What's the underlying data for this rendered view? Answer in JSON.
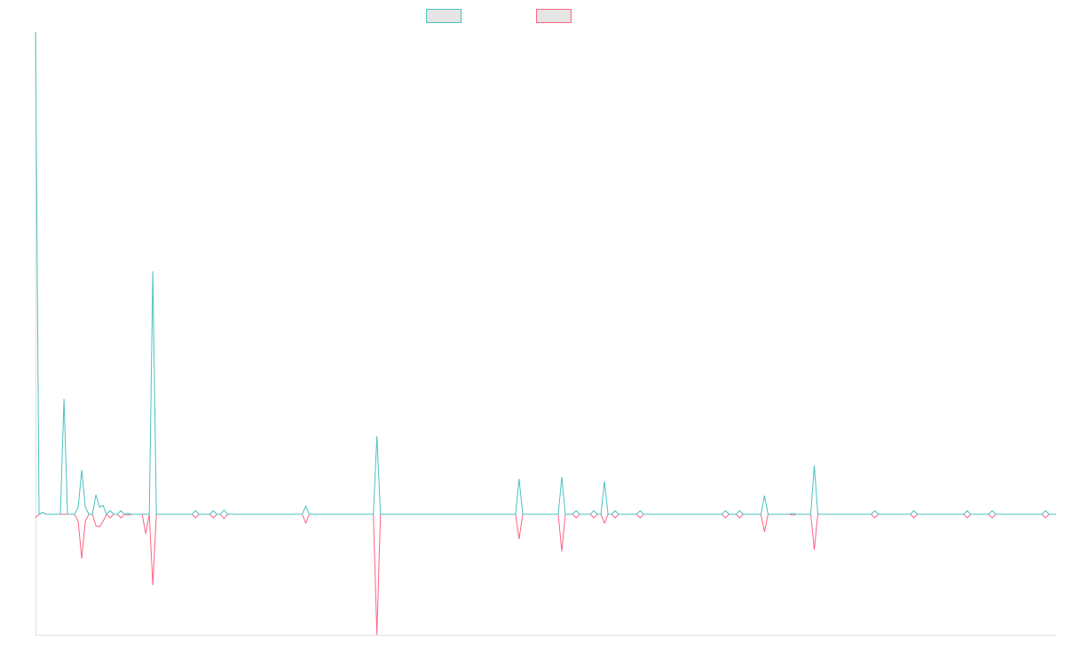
{
  "chart_data": {
    "type": "line",
    "title": "",
    "xlabel": "",
    "ylabel": "",
    "x_count": 288,
    "default_value": 0,
    "ylim": [
      -136,
      544
    ],
    "grid": false,
    "legend_placement": "top-center",
    "series": [
      {
        "name": "",
        "color": "#4bc0c0",
        "points": [
          [
            0,
            544
          ],
          [
            2,
            2
          ],
          [
            8,
            130
          ],
          [
            12,
            8
          ],
          [
            13,
            50
          ],
          [
            14,
            8
          ],
          [
            17,
            22
          ],
          [
            18,
            8
          ],
          [
            19,
            10
          ],
          [
            21,
            4
          ],
          [
            24,
            4
          ],
          [
            26,
            1
          ],
          [
            33,
            274
          ],
          [
            45,
            4
          ],
          [
            50,
            4
          ],
          [
            53,
            5
          ],
          [
            76,
            9
          ],
          [
            96,
            88
          ],
          [
            136,
            40
          ],
          [
            148,
            42
          ],
          [
            152,
            4
          ],
          [
            157,
            4
          ],
          [
            160,
            37
          ],
          [
            163,
            4
          ],
          [
            170,
            4
          ],
          [
            194,
            4
          ],
          [
            198,
            4
          ],
          [
            205,
            21
          ],
          [
            213,
            1
          ],
          [
            219,
            55
          ],
          [
            236,
            4
          ],
          [
            247,
            4
          ],
          [
            262,
            4
          ],
          [
            269,
            4
          ],
          [
            284,
            4
          ]
        ]
      },
      {
        "name": "",
        "color": "#ff6384",
        "points": [
          [
            0,
            -4
          ],
          [
            2,
            2
          ],
          [
            12,
            -8
          ],
          [
            13,
            -50
          ],
          [
            14,
            -8
          ],
          [
            17,
            -13
          ],
          [
            18,
            -14
          ],
          [
            19,
            -8
          ],
          [
            21,
            -4
          ],
          [
            24,
            -4
          ],
          [
            26,
            -1
          ],
          [
            31,
            -22
          ],
          [
            33,
            -80
          ],
          [
            45,
            -4
          ],
          [
            50,
            -4
          ],
          [
            53,
            -5
          ],
          [
            76,
            -10
          ],
          [
            96,
            -136
          ],
          [
            136,
            -28
          ],
          [
            148,
            -42
          ],
          [
            152,
            -4
          ],
          [
            157,
            -4
          ],
          [
            160,
            -10
          ],
          [
            163,
            -4
          ],
          [
            170,
            -4
          ],
          [
            194,
            -4
          ],
          [
            198,
            -4
          ],
          [
            205,
            -20
          ],
          [
            213,
            -1
          ],
          [
            219,
            -40
          ],
          [
            236,
            -4
          ],
          [
            247,
            -4
          ],
          [
            262,
            -4
          ],
          [
            269,
            -4
          ],
          [
            284,
            -4
          ]
        ]
      }
    ]
  }
}
